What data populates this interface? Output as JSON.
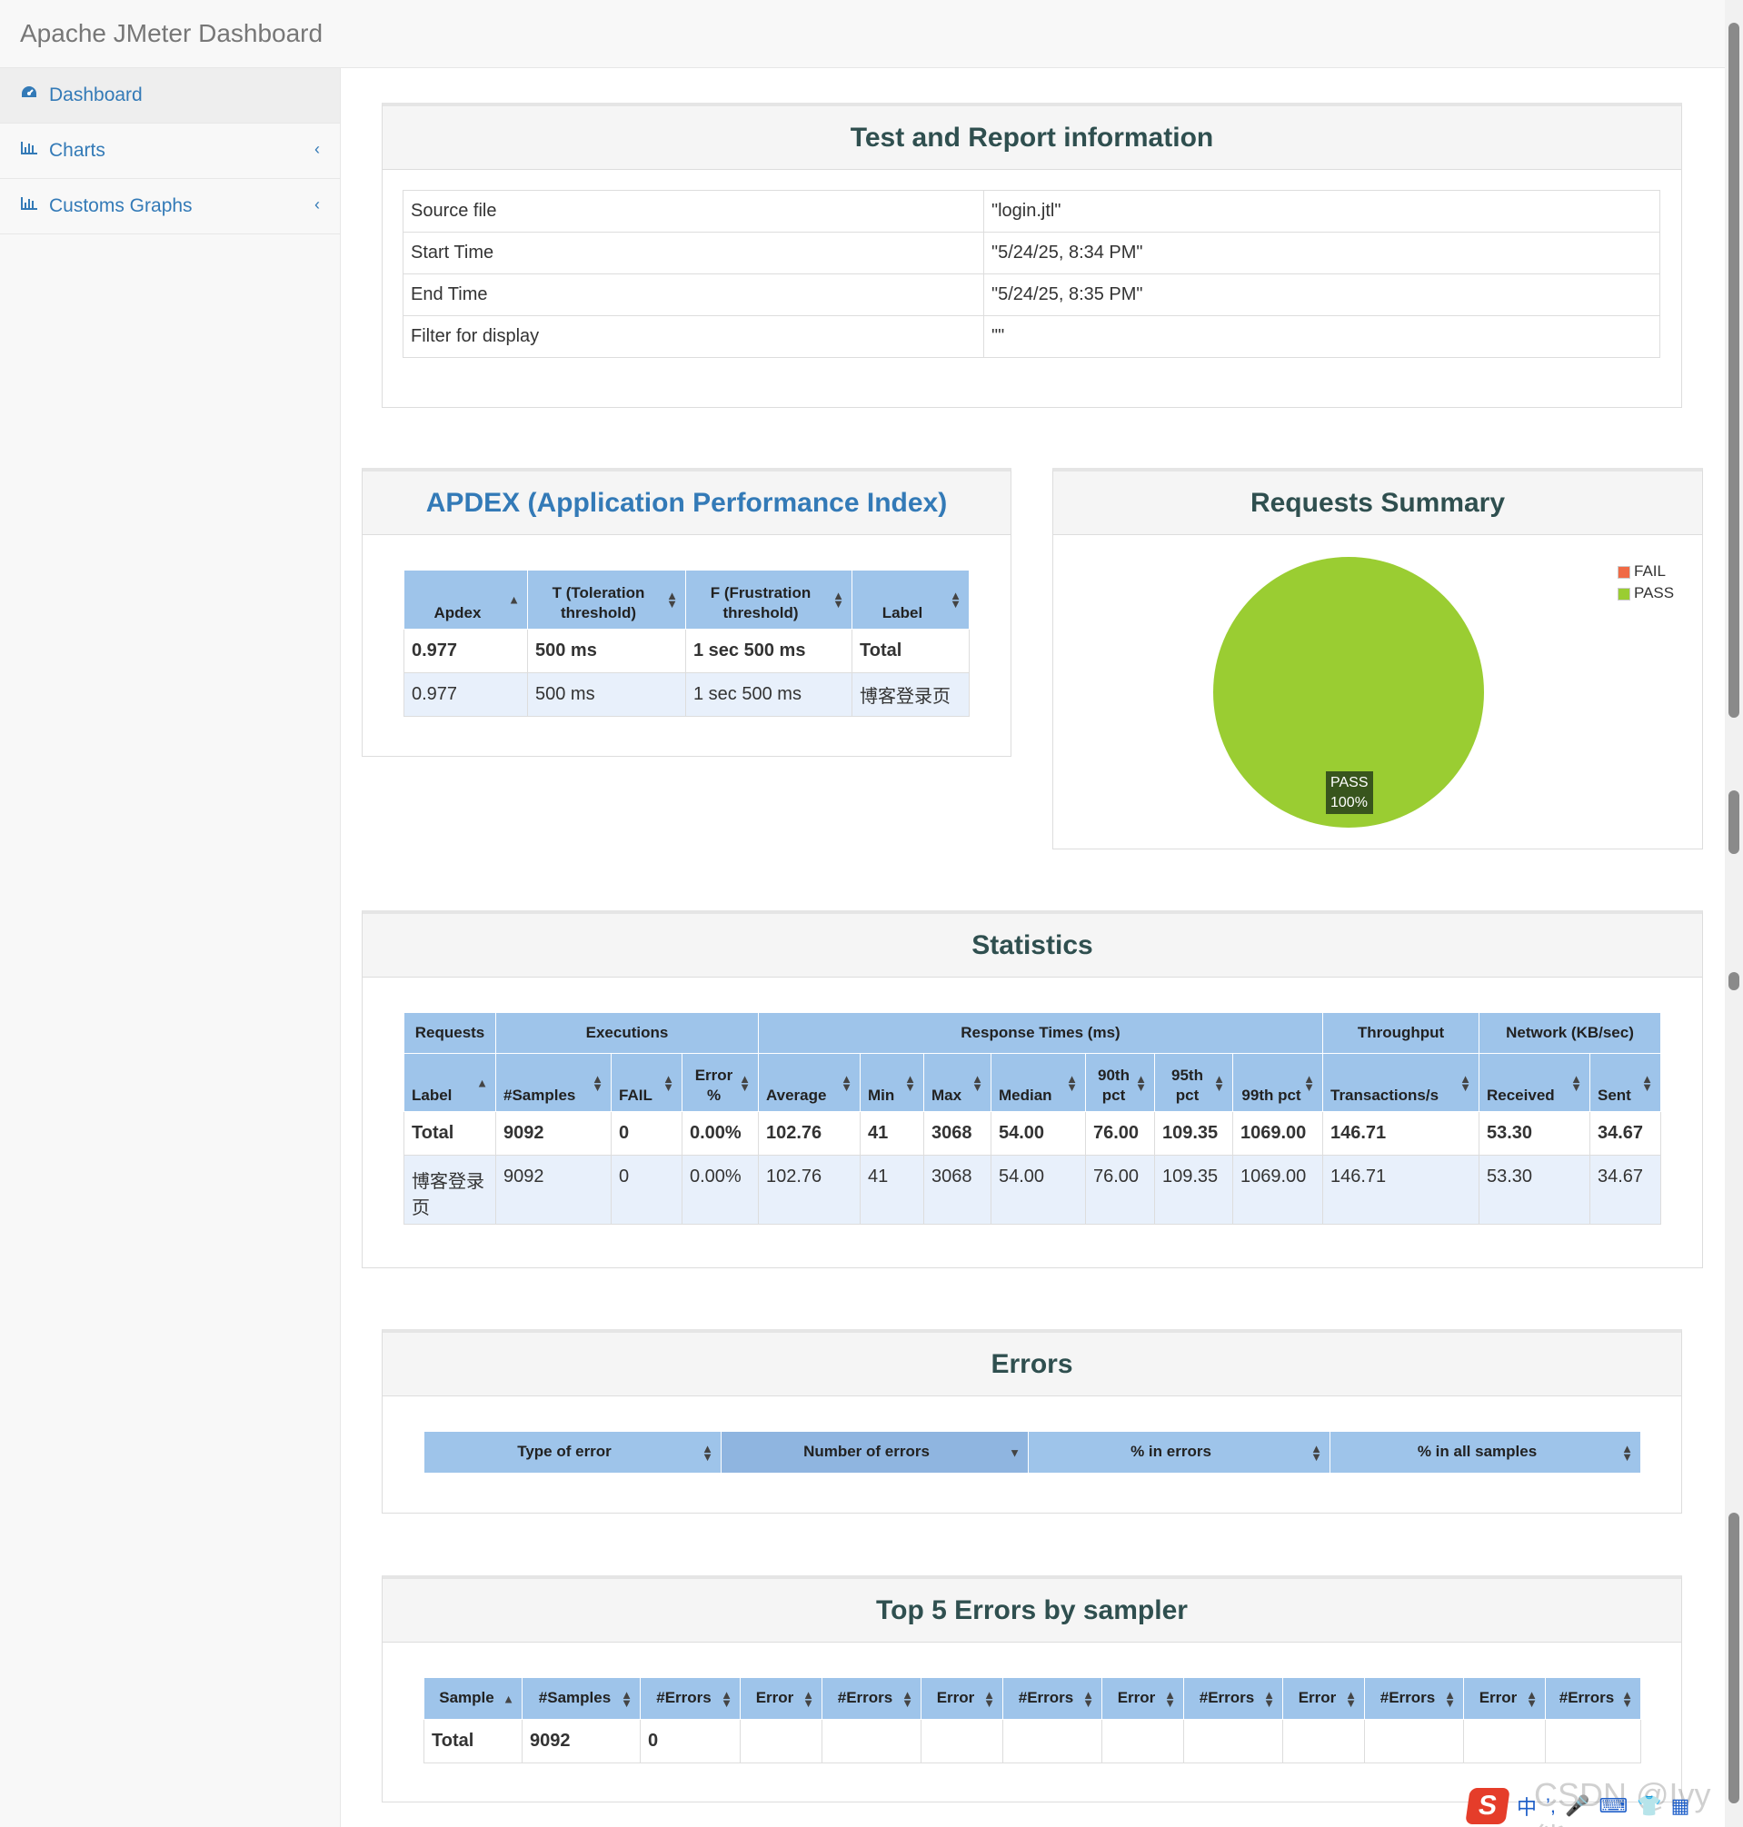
{
  "app": {
    "title": "Apache JMeter Dashboard"
  },
  "sidebar": {
    "items": [
      {
        "label": "Dashboard",
        "icon": "dashboard-icon"
      },
      {
        "label": "Charts",
        "icon": "bar-chart-icon"
      },
      {
        "label": "Customs Graphs",
        "icon": "bar-chart-icon"
      }
    ]
  },
  "info": {
    "title": "Test and Report information",
    "rows": [
      {
        "key": "Source file",
        "value": "\"login.jtl\""
      },
      {
        "key": "Start Time",
        "value": "\"5/24/25, 8:34 PM\""
      },
      {
        "key": "End Time",
        "value": "\"5/24/25, 8:35 PM\""
      },
      {
        "key": "Filter for display",
        "value": "\"\""
      }
    ]
  },
  "apdex": {
    "title": "APDEX (Application Performance Index)",
    "headers": [
      "Apdex",
      "T (Toleration threshold)",
      "F (Frustration threshold)",
      "Label"
    ],
    "rows": [
      [
        "0.977",
        "500 ms",
        "1 sec 500 ms",
        "Total"
      ],
      [
        "0.977",
        "500 ms",
        "1 sec 500 ms",
        "博客登录页"
      ]
    ]
  },
  "summary": {
    "title": "Requests Summary",
    "legend": [
      {
        "label": "FAIL",
        "color": "#f06a45"
      },
      {
        "label": "PASS",
        "color": "#9acd32"
      }
    ],
    "slice_label": "PASS",
    "slice_pct": "100%"
  },
  "chart_data": {
    "type": "pie",
    "title": "Requests Summary",
    "categories": [
      "FAIL",
      "PASS"
    ],
    "values": [
      0,
      100
    ],
    "colors": [
      "#f06a45",
      "#9acd32"
    ]
  },
  "statistics": {
    "title": "Statistics",
    "groups": [
      "Requests",
      "Executions",
      "Response Times (ms)",
      "Throughput",
      "Network (KB/sec)"
    ],
    "columns": [
      "Label",
      "#Samples",
      "FAIL",
      "Error %",
      "Average",
      "Min",
      "Max",
      "Median",
      "90th pct",
      "95th pct",
      "99th pct",
      "Transactions/s",
      "Received",
      "Sent"
    ],
    "rows": [
      [
        "Total",
        "9092",
        "0",
        "0.00%",
        "102.76",
        "41",
        "3068",
        "54.00",
        "76.00",
        "109.35",
        "1069.00",
        "146.71",
        "53.30",
        "34.67"
      ],
      [
        "博客登录页",
        "9092",
        "0",
        "0.00%",
        "102.76",
        "41",
        "3068",
        "54.00",
        "76.00",
        "109.35",
        "1069.00",
        "146.71",
        "53.30",
        "34.67"
      ]
    ]
  },
  "errors": {
    "title": "Errors",
    "headers": [
      "Type of error",
      "Number of errors",
      "% in errors",
      "% in all samples"
    ]
  },
  "top5": {
    "title": "Top 5 Errors by sampler",
    "headers": [
      "Sample",
      "#Samples",
      "#Errors",
      "Error",
      "#Errors",
      "Error",
      "#Errors",
      "Error",
      "#Errors",
      "Error",
      "#Errors",
      "Error",
      "#Errors"
    ],
    "rows": [
      [
        "Total",
        "9092",
        "0",
        "",
        "",
        "",
        "",
        "",
        "",
        "",
        "",
        "",
        ""
      ]
    ]
  },
  "tray": {
    "ime": "中",
    "watermark": "CSDN @Ivy熊"
  }
}
